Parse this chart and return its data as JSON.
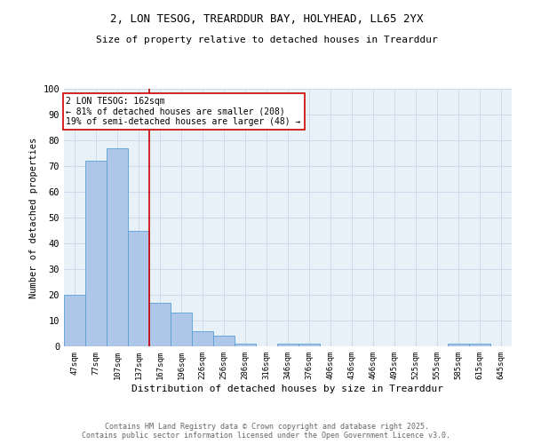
{
  "title_line1": "2, LON TESOG, TREARDDUR BAY, HOLYHEAD, LL65 2YX",
  "title_line2": "Size of property relative to detached houses in Trearddur",
  "xlabel": "Distribution of detached houses by size in Trearddur",
  "ylabel": "Number of detached properties",
  "bin_labels": [
    "47sqm",
    "77sqm",
    "107sqm",
    "137sqm",
    "167sqm",
    "196sqm",
    "226sqm",
    "256sqm",
    "286sqm",
    "316sqm",
    "346sqm",
    "376sqm",
    "406sqm",
    "436sqm",
    "466sqm",
    "495sqm",
    "525sqm",
    "555sqm",
    "585sqm",
    "615sqm",
    "645sqm"
  ],
  "bar_heights": [
    20,
    72,
    77,
    45,
    17,
    13,
    6,
    4,
    1,
    0,
    1,
    1,
    0,
    0,
    0,
    0,
    0,
    0,
    1,
    1,
    0
  ],
  "bar_color": "#aec6e8",
  "bar_edge_color": "#5a9fd4",
  "vline_x": 4,
  "vline_color": "#cc0000",
  "annotation_text": "2 LON TESOG: 162sqm\n← 81% of detached houses are smaller (208)\n19% of semi-detached houses are larger (48) →",
  "annotation_box_color": "#ffffff",
  "annotation_box_edge": "#cc0000",
  "ylim": [
    0,
    100
  ],
  "yticks": [
    0,
    10,
    20,
    30,
    40,
    50,
    60,
    70,
    80,
    90,
    100
  ],
  "grid_color": "#ccdaeb",
  "footer_line1": "Contains HM Land Registry data © Crown copyright and database right 2025.",
  "footer_line2": "Contains public sector information licensed under the Open Government Licence v3.0.",
  "bg_color": "#e8f0f8"
}
